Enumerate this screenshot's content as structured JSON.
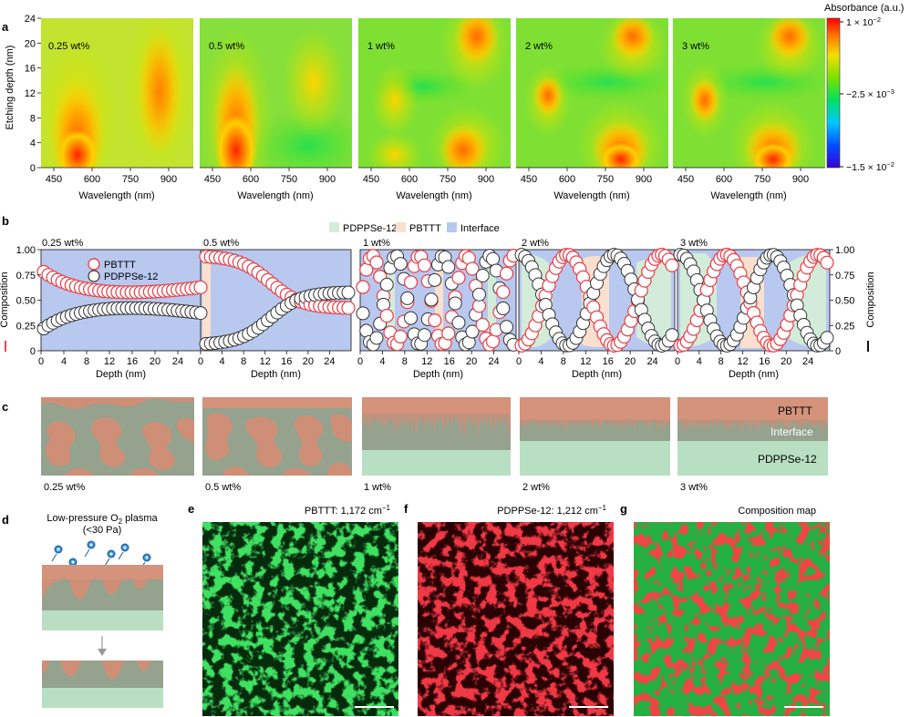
{
  "panel_letters": [
    "a",
    "b",
    "c",
    "d",
    "e",
    "f",
    "g"
  ],
  "panel_a": {
    "ylabel": "Etching depth (nm)",
    "xlabel": "Wavelength (nm)",
    "yticks": [
      "0",
      "4",
      "8",
      "12",
      "16",
      "20",
      "24"
    ],
    "xticks": [
      "450",
      "600",
      "750",
      "900"
    ],
    "maps": [
      "0.25 wt%",
      "0.5 wt%",
      "1 wt%",
      "2 wt%",
      "3 wt%"
    ],
    "colorbar": {
      "title": "Absorbance (a.u.)",
      "top": "1 × 10",
      "top_exp": "−2",
      "mid": "−2.5 × 10",
      "mid_exp": "−3",
      "bottom": "−1.5 × 10",
      "bottom_exp": "−2"
    }
  },
  "panel_b": {
    "legend": [
      "PDPPSe-12",
      "PBTTT",
      "Interface"
    ],
    "legend_colors": [
      "#d3ecd9",
      "#fbe0cf",
      "#b8c8ef"
    ],
    "series": [
      "PBTTT",
      "PDPPSe-12"
    ],
    "ylabel": "Composition",
    "xlabel": "Depth (nm)",
    "yticks": [
      "0",
      "0.25",
      "0.50",
      "0.75",
      "1.00"
    ],
    "xticks": [
      "0",
      "4",
      "8",
      "12",
      "16",
      "20",
      "24"
    ],
    "plots": [
      "0.25 wt%",
      "0.5 wt%",
      "1 wt%",
      "2 wt%",
      "3 wt%"
    ]
  },
  "panel_c": {
    "labels": [
      "0.25 wt%",
      "0.5 wt%",
      "1 wt%",
      "2 wt%",
      "3 wt%"
    ],
    "layer_labels": [
      "PBTTT",
      "Interface",
      "PDPPSe-12"
    ]
  },
  "panel_d": {
    "title_line1": "Low-pressure O",
    "title_sub": "2",
    "title_line1b": " plasma",
    "title_line2": "(<30 Pa)"
  },
  "panel_e": {
    "title": "PBTTT: 1,172 cm",
    "exp": "−1"
  },
  "panel_f": {
    "title": "PDPPSe-12: 1,212 cm",
    "exp": "−1"
  },
  "panel_g": {
    "title": "Composition map"
  },
  "colors": {
    "pbttt": "#d4937a",
    "interface": "#94a28e",
    "pdppse": "#b9dfc2",
    "red_marker": "#e8474f",
    "green_map": "#1fa83a",
    "red_map": "#d9161d"
  }
}
